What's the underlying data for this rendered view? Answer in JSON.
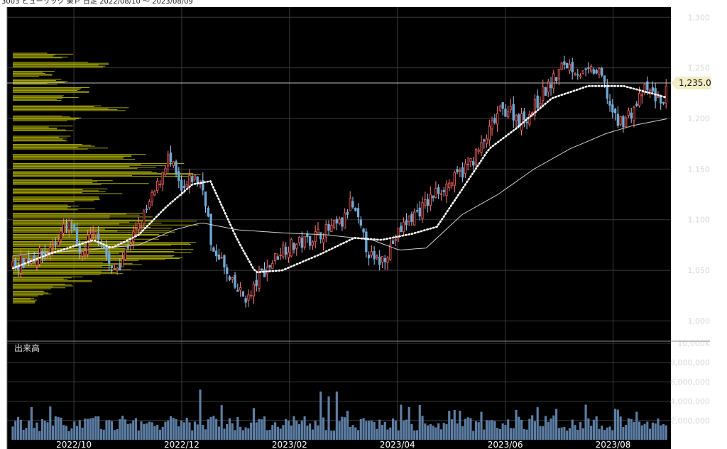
{
  "header": {
    "title": "3003 ヒューリック 東Ｐ 日足 2022/08/10 ～ 2023/08/09"
  },
  "colors": {
    "background": "#000000",
    "grid": "#3a3a3a",
    "up_candle": "#d9534f",
    "down_candle": "#6fa8d6",
    "volume_bar": "#5d7fa6",
    "volume_profile": "#b5b500",
    "ma_short": "#ffffff",
    "ma_long": "#cfcfcf",
    "current_price_line": "#cccccc",
    "price_tag": "#f3edc7"
  },
  "price_panel": {
    "ylim": [
      980,
      1310
    ],
    "ticks": [
      "1,000",
      "1,050",
      "1,100",
      "1,150",
      "1,200",
      "1,250",
      "1,300"
    ],
    "tick_values": [
      1000,
      1050,
      1100,
      1150,
      1200,
      1250,
      1300
    ],
    "current_price": 1235,
    "current_price_label": "1,235.0"
  },
  "volume_panel": {
    "label": "出来高",
    "ylim": [
      0,
      10000000
    ],
    "ticks": [
      "2,000,000",
      "4,000,000",
      "6,000,000",
      "8,000,000",
      "10,000K"
    ],
    "tick_values": [
      2000000,
      4000000,
      6000000,
      8000000,
      10000000
    ]
  },
  "x_axis": {
    "labels": [
      "2022/10",
      "2022/12",
      "2023/02",
      "2023/04",
      "2023/06",
      "2023/08"
    ],
    "label_days": [
      34,
      94,
      154,
      214,
      274,
      334
    ]
  },
  "chart_data": {
    "type": "candlestick",
    "title": "3003 ヒューリック 東Ｐ 日足 2022/08/10 ～ 2023/08/09",
    "x_range": [
      "2022/08/10",
      "2023/08/09"
    ],
    "close_keypoints": [
      [
        0,
        1055
      ],
      [
        10,
        1062
      ],
      [
        20,
        1068
      ],
      [
        28,
        1090
      ],
      [
        33,
        1095
      ],
      [
        37,
        1060
      ],
      [
        42,
        1080
      ],
      [
        48,
        1087
      ],
      [
        55,
        1048
      ],
      [
        60,
        1058
      ],
      [
        64,
        1075
      ],
      [
        70,
        1092
      ],
      [
        76,
        1115
      ],
      [
        81,
        1135
      ],
      [
        86,
        1162
      ],
      [
        90,
        1148
      ],
      [
        94,
        1125
      ],
      [
        100,
        1142
      ],
      [
        105,
        1135
      ],
      [
        108,
        1115
      ],
      [
        111,
        1060
      ],
      [
        114,
        1070
      ],
      [
        120,
        1040
      ],
      [
        124,
        1032
      ],
      [
        128,
        1025
      ],
      [
        132,
        1022
      ],
      [
        137,
        1045
      ],
      [
        143,
        1055
      ],
      [
        150,
        1072
      ],
      [
        157,
        1075
      ],
      [
        163,
        1079
      ],
      [
        170,
        1086
      ],
      [
        176,
        1090
      ],
      [
        180,
        1094
      ],
      [
        184,
        1097
      ],
      [
        188,
        1118
      ],
      [
        192,
        1098
      ],
      [
        197,
        1072
      ],
      [
        201,
        1058
      ],
      [
        205,
        1060
      ],
      [
        209,
        1070
      ],
      [
        214,
        1085
      ],
      [
        220,
        1100
      ],
      [
        228,
        1112
      ],
      [
        236,
        1128
      ],
      [
        246,
        1140
      ],
      [
        254,
        1155
      ],
      [
        262,
        1175
      ],
      [
        270,
        1205
      ],
      [
        276,
        1210
      ],
      [
        282,
        1198
      ],
      [
        288,
        1205
      ],
      [
        295,
        1225
      ],
      [
        302,
        1240
      ],
      [
        307,
        1255
      ],
      [
        312,
        1250
      ],
      [
        318,
        1242
      ],
      [
        323,
        1248
      ],
      [
        328,
        1240
      ],
      [
        332,
        1215
      ],
      [
        336,
        1195
      ],
      [
        341,
        1200
      ],
      [
        346,
        1210
      ],
      [
        351,
        1228
      ],
      [
        356,
        1225
      ],
      [
        361,
        1215
      ],
      [
        365,
        1235
      ]
    ],
    "ma_short_keypoints": [
      [
        0,
        1052
      ],
      [
        20,
        1066
      ],
      [
        45,
        1080
      ],
      [
        55,
        1072
      ],
      [
        70,
        1085
      ],
      [
        85,
        1112
      ],
      [
        100,
        1135
      ],
      [
        110,
        1138
      ],
      [
        125,
        1080
      ],
      [
        135,
        1048
      ],
      [
        150,
        1050
      ],
      [
        170,
        1065
      ],
      [
        190,
        1082
      ],
      [
        205,
        1080
      ],
      [
        222,
        1086
      ],
      [
        236,
        1093
      ],
      [
        250,
        1130
      ],
      [
        265,
        1170
      ],
      [
        280,
        1190
      ],
      [
        300,
        1220
      ],
      [
        320,
        1232
      ],
      [
        340,
        1232
      ],
      [
        355,
        1225
      ],
      [
        365,
        1220
      ]
    ],
    "ma_long_keypoints": [
      [
        0,
        1065
      ],
      [
        40,
        1070
      ],
      [
        70,
        1075
      ],
      [
        90,
        1090
      ],
      [
        105,
        1097
      ],
      [
        125,
        1090
      ],
      [
        150,
        1087
      ],
      [
        175,
        1085
      ],
      [
        200,
        1080
      ],
      [
        215,
        1070
      ],
      [
        230,
        1072
      ],
      [
        250,
        1105
      ],
      [
        270,
        1125
      ],
      [
        290,
        1150
      ],
      [
        310,
        1170
      ],
      [
        330,
        1185
      ],
      [
        345,
        1193
      ],
      [
        365,
        1200
      ]
    ],
    "volume_profile": [
      {
        "price": 1262,
        "length": 0.22
      },
      {
        "price": 1253,
        "length": 0.38
      },
      {
        "price": 1244,
        "length": 0.16
      },
      {
        "price": 1236,
        "length": 0.2
      },
      {
        "price": 1228,
        "length": 0.28
      },
      {
        "price": 1220,
        "length": 0.25
      },
      {
        "price": 1210,
        "length": 0.42
      },
      {
        "price": 1200,
        "length": 0.3
      },
      {
        "price": 1190,
        "length": 0.22
      },
      {
        "price": 1180,
        "length": 0.26
      },
      {
        "price": 1172,
        "length": 0.35
      },
      {
        "price": 1162,
        "length": 0.5
      },
      {
        "price": 1153,
        "length": 0.62
      },
      {
        "price": 1145,
        "length": 0.7
      },
      {
        "price": 1137,
        "length": 0.48
      },
      {
        "price": 1128,
        "length": 0.4
      },
      {
        "price": 1120,
        "length": 0.32
      },
      {
        "price": 1112,
        "length": 0.35
      },
      {
        "price": 1104,
        "length": 0.52
      },
      {
        "price": 1097,
        "length": 0.68
      },
      {
        "price": 1090,
        "length": 0.58
      },
      {
        "price": 1083,
        "length": 0.64
      },
      {
        "price": 1076,
        "length": 0.72
      },
      {
        "price": 1069,
        "length": 0.66
      },
      {
        "price": 1062,
        "length": 0.6
      },
      {
        "price": 1055,
        "length": 0.48
      },
      {
        "price": 1048,
        "length": 0.44
      },
      {
        "price": 1041,
        "length": 0.28
      },
      {
        "price": 1034,
        "length": 0.22
      },
      {
        "price": 1027,
        "length": 0.14
      },
      {
        "price": 1020,
        "length": 0.1
      }
    ]
  }
}
